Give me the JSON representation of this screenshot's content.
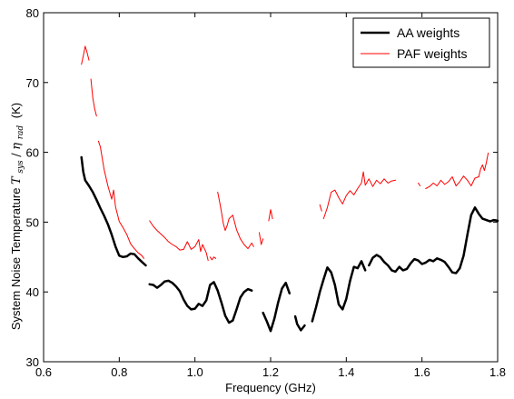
{
  "chart_data": {
    "type": "line",
    "title": "",
    "xlabel": "Frequency (GHz)",
    "ylabel_prefix": "System Noise Temperature",
    "ylabel_symbol_main": "T",
    "ylabel_symbol_sub": "sys",
    "ylabel_slash": "/",
    "ylabel_symbol2_main": "η",
    "ylabel_symbol2_sub": "rad",
    "ylabel_suffix": "(K)",
    "xlim": [
      0.6,
      1.8
    ],
    "ylim": [
      30,
      80
    ],
    "xticks": [
      0.6,
      0.8,
      1.0,
      1.2,
      1.4,
      1.6,
      1.8
    ],
    "xtick_labels": [
      "0.6",
      "0.8",
      "1.0",
      "1.2",
      "1.4",
      "1.6",
      "1.8"
    ],
    "yticks": [
      30,
      40,
      50,
      60,
      70,
      80
    ],
    "ytick_labels": [
      "30",
      "40",
      "50",
      "60",
      "70",
      "80"
    ],
    "grid": false,
    "legend_position": "top-right",
    "series": [
      {
        "name": "AA weights",
        "color": "#000000",
        "segments": [
          [
            [
              0.7,
              59.3
            ],
            [
              0.705,
              57.2
            ],
            [
              0.71,
              56.0
            ],
            [
              0.72,
              55.2
            ],
            [
              0.73,
              54.3
            ],
            [
              0.74,
              53.2
            ],
            [
              0.75,
              52.0
            ],
            [
              0.76,
              50.9
            ],
            [
              0.77,
              49.7
            ],
            [
              0.78,
              48.2
            ],
            [
              0.79,
              46.5
            ],
            [
              0.8,
              45.2
            ],
            [
              0.81,
              45.0
            ],
            [
              0.82,
              45.1
            ],
            [
              0.83,
              45.5
            ],
            [
              0.84,
              45.4
            ],
            [
              0.85,
              44.8
            ],
            [
              0.86,
              44.3
            ],
            [
              0.87,
              43.8
            ]
          ],
          [
            [
              0.88,
              41.1
            ],
            [
              0.89,
              41.0
            ],
            [
              0.9,
              40.6
            ],
            [
              0.91,
              41.0
            ],
            [
              0.92,
              41.5
            ],
            [
              0.93,
              41.6
            ],
            [
              0.94,
              41.3
            ],
            [
              0.95,
              40.8
            ],
            [
              0.96,
              40.1
            ],
            [
              0.97,
              38.9
            ],
            [
              0.98,
              38.0
            ],
            [
              0.99,
              37.5
            ],
            [
              1.0,
              37.6
            ],
            [
              1.01,
              38.3
            ],
            [
              1.02,
              38.0
            ],
            [
              1.03,
              38.8
            ],
            [
              1.04,
              41.0
            ],
            [
              1.05,
              41.4
            ],
            [
              1.06,
              40.2
            ],
            [
              1.07,
              38.5
            ],
            [
              1.08,
              36.6
            ],
            [
              1.09,
              35.6
            ],
            [
              1.1,
              35.9
            ],
            [
              1.11,
              37.5
            ],
            [
              1.12,
              39.2
            ],
            [
              1.13,
              40.0
            ],
            [
              1.14,
              40.4
            ],
            [
              1.15,
              40.2
            ]
          ],
          [
            [
              1.18,
              37.0
            ],
            [
              1.19,
              35.8
            ],
            [
              1.2,
              34.4
            ],
            [
              1.21,
              36.2
            ],
            [
              1.22,
              38.5
            ],
            [
              1.23,
              40.5
            ],
            [
              1.24,
              41.3
            ],
            [
              1.25,
              39.8
            ]
          ],
          [
            [
              1.265,
              36.5
            ],
            [
              1.27,
              35.4
            ],
            [
              1.28,
              34.5
            ],
            [
              1.29,
              35.2
            ]
          ],
          [
            [
              1.31,
              35.8
            ],
            [
              1.32,
              37.8
            ],
            [
              1.33,
              40.0
            ],
            [
              1.34,
              41.8
            ],
            [
              1.35,
              43.5
            ],
            [
              1.36,
              42.8
            ],
            [
              1.37,
              41.0
            ],
            [
              1.38,
              38.2
            ],
            [
              1.39,
              37.5
            ],
            [
              1.4,
              39.0
            ],
            [
              1.41,
              41.6
            ],
            [
              1.42,
              43.6
            ],
            [
              1.43,
              43.4
            ],
            [
              1.44,
              44.4
            ],
            [
              1.45,
              43.1
            ]
          ],
          [
            [
              1.46,
              43.8
            ],
            [
              1.47,
              44.9
            ],
            [
              1.48,
              45.3
            ],
            [
              1.49,
              45.0
            ],
            [
              1.5,
              44.3
            ],
            [
              1.51,
              43.8
            ],
            [
              1.52,
              43.1
            ],
            [
              1.53,
              42.9
            ],
            [
              1.54,
              43.6
            ],
            [
              1.55,
              43.1
            ],
            [
              1.56,
              43.3
            ],
            [
              1.57,
              44.1
            ],
            [
              1.58,
              44.7
            ],
            [
              1.59,
              44.5
            ],
            [
              1.6,
              44.0
            ],
            [
              1.61,
              44.2
            ],
            [
              1.62,
              44.6
            ],
            [
              1.63,
              44.4
            ],
            [
              1.64,
              44.8
            ],
            [
              1.65,
              44.6
            ],
            [
              1.66,
              44.3
            ],
            [
              1.67,
              43.6
            ],
            [
              1.68,
              42.8
            ],
            [
              1.69,
              42.7
            ],
            [
              1.7,
              43.4
            ],
            [
              1.71,
              45.2
            ],
            [
              1.72,
              48.2
            ],
            [
              1.73,
              51.0
            ],
            [
              1.74,
              52.1
            ],
            [
              1.75,
              51.2
            ],
            [
              1.76,
              50.5
            ],
            [
              1.77,
              50.3
            ],
            [
              1.78,
              50.1
            ],
            [
              1.79,
              50.3
            ],
            [
              1.8,
              50.2
            ]
          ]
        ]
      },
      {
        "name": "PAF weights",
        "color": "#ff0000",
        "segments": [
          [
            [
              0.7,
              72.6
            ],
            [
              0.705,
              73.8
            ],
            [
              0.71,
              75.2
            ],
            [
              0.715,
              74.3
            ],
            [
              0.72,
              73.2
            ]
          ],
          [
            [
              0.725,
              70.5
            ],
            [
              0.73,
              67.8
            ],
            [
              0.735,
              66.2
            ],
            [
              0.74,
              65.2
            ]
          ],
          [
            [
              0.745,
              61.6
            ],
            [
              0.75,
              60.8
            ],
            [
              0.76,
              57.5
            ],
            [
              0.77,
              55.2
            ],
            [
              0.78,
              53.3
            ],
            [
              0.785,
              54.6
            ],
            [
              0.79,
              52.2
            ],
            [
              0.8,
              50.1
            ],
            [
              0.81,
              49.2
            ],
            [
              0.82,
              48.2
            ],
            [
              0.83,
              46.9
            ],
            [
              0.84,
              46.2
            ],
            [
              0.85,
              45.6
            ],
            [
              0.86,
              45.2
            ],
            [
              0.865,
              44.8
            ]
          ],
          [
            [
              0.88,
              50.2
            ],
            [
              0.89,
              49.4
            ],
            [
              0.9,
              48.8
            ],
            [
              0.91,
              48.3
            ],
            [
              0.92,
              47.8
            ],
            [
              0.93,
              47.2
            ],
            [
              0.94,
              46.8
            ],
            [
              0.95,
              46.5
            ],
            [
              0.96,
              46.0
            ],
            [
              0.97,
              46.1
            ],
            [
              0.98,
              47.2
            ],
            [
              0.99,
              46.1
            ],
            [
              1.0,
              46.5
            ],
            [
              1.01,
              47.5
            ],
            [
              1.015,
              45.8
            ],
            [
              1.02,
              46.8
            ],
            [
              1.03,
              45.6
            ],
            [
              1.035,
              44.5
            ]
          ],
          [
            [
              1.04,
              45.0
            ],
            [
              1.045,
              44.6
            ],
            [
              1.05,
              45.0
            ],
            [
              1.055,
              44.8
            ]
          ],
          [
            [
              1.06,
              54.3
            ],
            [
              1.065,
              53.0
            ],
            [
              1.07,
              51.5
            ],
            [
              1.075,
              49.8
            ],
            [
              1.08,
              48.8
            ],
            [
              1.085,
              49.5
            ],
            [
              1.09,
              50.5
            ],
            [
              1.1,
              51.0
            ],
            [
              1.11,
              48.9
            ],
            [
              1.12,
              47.6
            ],
            [
              1.13,
              46.8
            ],
            [
              1.14,
              46.2
            ],
            [
              1.15,
              47.0
            ],
            [
              1.155,
              46.5
            ]
          ],
          [
            [
              1.17,
              48.5
            ],
            [
              1.175,
              46.8
            ],
            [
              1.18,
              47.6
            ]
          ],
          [
            [
              1.195,
              50.2
            ],
            [
              1.2,
              51.8
            ],
            [
              1.205,
              50.5
            ]
          ],
          [
            [
              1.33,
              52.5
            ],
            [
              1.335,
              51.6
            ]
          ],
          [
            [
              1.34,
              50.5
            ],
            [
              1.35,
              52.1
            ],
            [
              1.36,
              54.3
            ],
            [
              1.37,
              54.6
            ],
            [
              1.38,
              53.5
            ],
            [
              1.39,
              52.6
            ],
            [
              1.4,
              53.8
            ],
            [
              1.41,
              54.5
            ],
            [
              1.42,
              53.9
            ],
            [
              1.43,
              54.8
            ],
            [
              1.44,
              55.6
            ],
            [
              1.445,
              57.2
            ],
            [
              1.45,
              55.3
            ],
            [
              1.46,
              56.2
            ],
            [
              1.47,
              55.1
            ],
            [
              1.48,
              56.0
            ],
            [
              1.49,
              55.5
            ],
            [
              1.5,
              56.2
            ],
            [
              1.51,
              55.6
            ],
            [
              1.52,
              55.9
            ],
            [
              1.53,
              56.0
            ]
          ],
          [
            [
              1.59,
              55.6
            ],
            [
              1.595,
              55.2
            ]
          ],
          [
            [
              1.61,
              54.8
            ],
            [
              1.62,
              55.1
            ],
            [
              1.63,
              55.6
            ],
            [
              1.64,
              55.2
            ],
            [
              1.65,
              56.0
            ],
            [
              1.66,
              55.4
            ],
            [
              1.67,
              55.8
            ],
            [
              1.68,
              56.5
            ],
            [
              1.69,
              55.2
            ],
            [
              1.7,
              55.8
            ],
            [
              1.71,
              56.6
            ],
            [
              1.72,
              56.0
            ],
            [
              1.73,
              55.2
            ],
            [
              1.74,
              56.3
            ],
            [
              1.75,
              56.5
            ],
            [
              1.755,
              57.6
            ],
            [
              1.76,
              58.2
            ],
            [
              1.765,
              57.4
            ],
            [
              1.77,
              58.5
            ],
            [
              1.775,
              59.9
            ]
          ]
        ]
      }
    ]
  }
}
